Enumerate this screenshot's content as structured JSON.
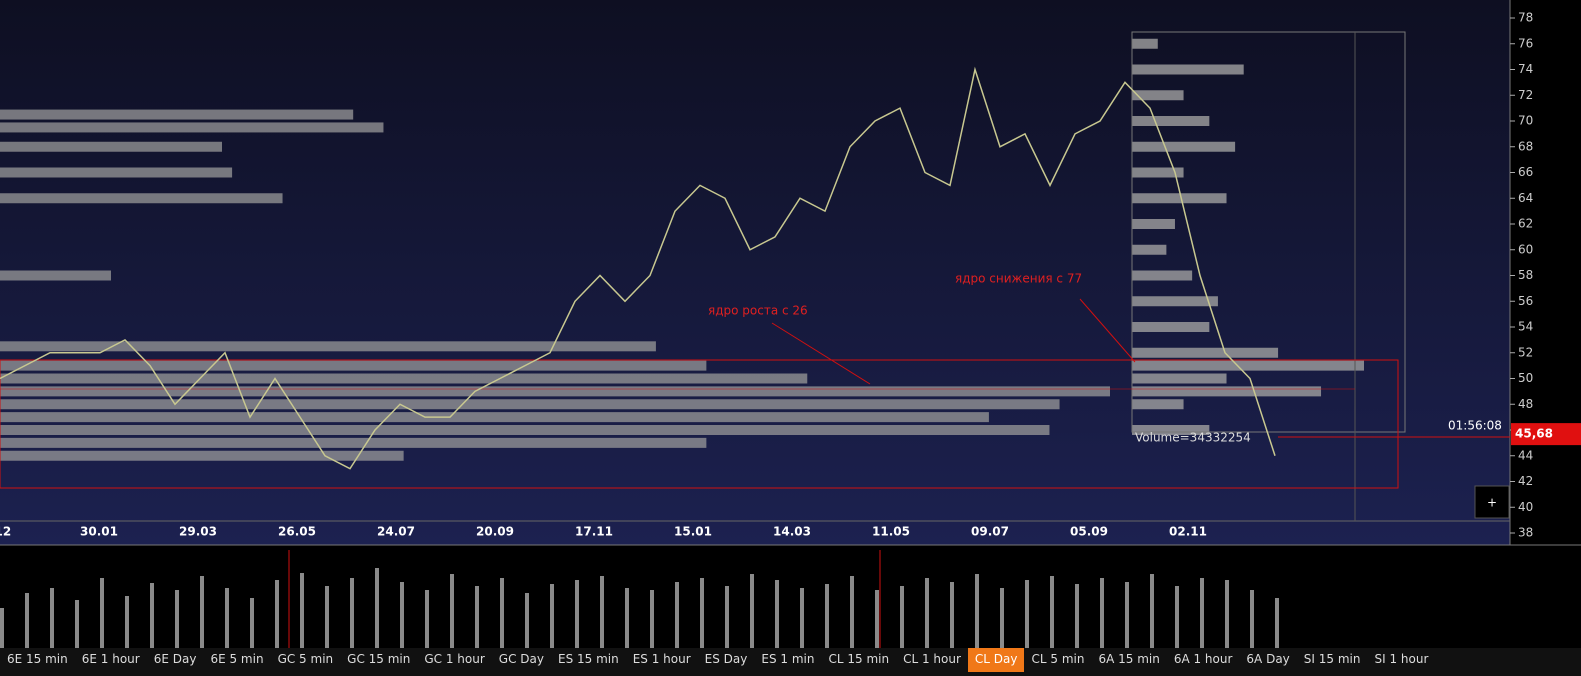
{
  "price_axis": {
    "ticks": [
      38,
      40,
      42,
      44,
      46,
      48,
      50,
      52,
      54,
      56,
      58,
      60,
      62,
      64,
      66,
      68,
      70,
      72,
      74,
      76,
      78
    ],
    "range": [
      38,
      78
    ]
  },
  "date_axis": {
    "labels": [
      ".12",
      "30.01",
      "29.03",
      "26.05",
      "24.07",
      "20.09",
      "17.11",
      "15.01",
      "14.03",
      "11.05",
      "09.07",
      "05.09",
      "02.11"
    ]
  },
  "price": {
    "values": [
      50,
      51,
      52,
      52,
      52,
      53,
      51,
      48,
      50,
      52,
      47,
      50,
      47,
      44,
      43,
      46,
      48,
      47,
      47,
      49,
      50,
      51,
      52,
      56,
      58,
      56,
      58,
      63,
      65,
      64,
      60,
      61,
      64,
      63,
      68,
      70,
      71,
      66,
      65,
      74,
      68,
      69,
      65,
      69,
      70,
      73,
      71,
      66,
      58,
      52,
      50,
      44
    ]
  },
  "volume": {
    "values": [
      40,
      55,
      60,
      48,
      70,
      52,
      65,
      58,
      72,
      60,
      50,
      68,
      75,
      62,
      70,
      80,
      66,
      58,
      74,
      62,
      70,
      55,
      64,
      68,
      72,
      60,
      58,
      66,
      70,
      62,
      74,
      68,
      60,
      64,
      72,
      58,
      62,
      70,
      66,
      74,
      60,
      68,
      72,
      64,
      70,
      66,
      74,
      62,
      70,
      68,
      58,
      50
    ]
  },
  "left_profile": {
    "prices": [
      70.5,
      69.5,
      68,
      66,
      64,
      58,
      52.5,
      51,
      50,
      49,
      48,
      47,
      46,
      45,
      44
    ],
    "values": [
      350,
      380,
      220,
      230,
      280,
      110,
      650,
      700,
      800,
      1100,
      1050,
      980,
      1040,
      700,
      400
    ]
  },
  "right_profile": {
    "prices": [
      76,
      74,
      72,
      70,
      68,
      66,
      64,
      62,
      60,
      58,
      56,
      54,
      52,
      51,
      50,
      49,
      48,
      46
    ],
    "values": [
      30,
      130,
      60,
      90,
      120,
      60,
      110,
      50,
      40,
      70,
      100,
      90,
      170,
      270,
      110,
      220,
      60,
      90
    ]
  },
  "annotations": {
    "growth": "ядро роста с 26",
    "decline": "ядро снижения с 77",
    "volume": "Volume=34332254",
    "timer": "01:56:08"
  },
  "current_price": {
    "value": 45.68,
    "label": "45,68"
  },
  "add_button": "+",
  "tabs": [
    "6E 15 min",
    "6E 1 hour",
    "6E Day",
    "6E 5 min",
    "GC 5 min",
    "GC 15 min",
    "GC 1 hour",
    "GC Day",
    "ES 15 min",
    "ES 1 hour",
    "ES Day",
    "ES 1 min",
    "CL 15 min",
    "CL 1 hour",
    "CL Day",
    "CL 5 min",
    "6A 15 min",
    "6A 1 hour",
    "6A Day",
    "SI 15 min",
    "SI 1 hour"
  ],
  "active_tab": 14
}
